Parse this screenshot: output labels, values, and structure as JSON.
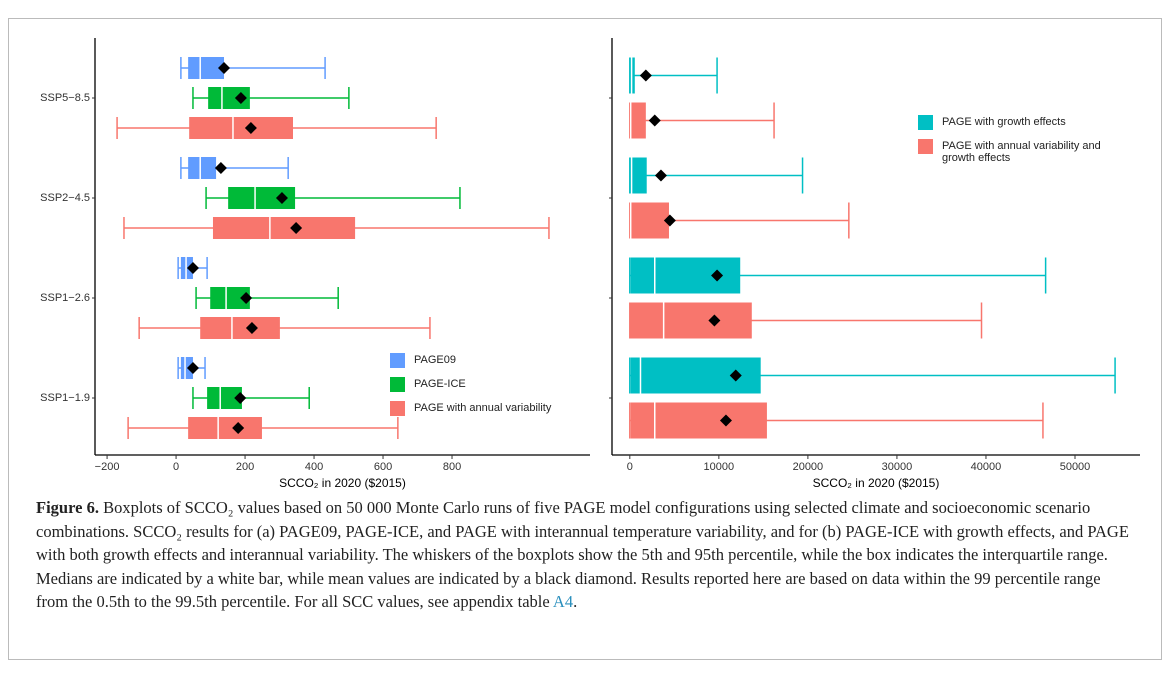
{
  "chart_data": [
    {
      "type": "boxplot",
      "xlabel": "SCCO₂ in 2020 ($2015)",
      "categories": [
        "SSP5−8.5",
        "SSP2−4.5",
        "SSP1−2.6",
        "SSP1−1.9"
      ],
      "xlim": [
        -235,
        1200
      ],
      "xticks": [
        {
          "value": -200,
          "label": "−200"
        },
        0,
        200,
        400,
        600,
        800
      ],
      "legend": "lower right",
      "series": [
        {
          "name": "PAGE09",
          "color": "#619CFF",
          "whislo": [
            14,
            14,
            6,
            6
          ],
          "q1": [
            35,
            35,
            14,
            14
          ],
          "med": [
            70,
            70,
            29,
            26
          ],
          "q3": [
            139,
            116,
            49,
            49
          ],
          "whishi": [
            432,
            325,
            90,
            84
          ],
          "mean": [
            139,
            130,
            49,
            49
          ]
        },
        {
          "name": "PAGE-ICE",
          "color": "#00BA38",
          "whislo": [
            49,
            87,
            58,
            49
          ],
          "q1": [
            93,
            151,
            99,
            90
          ],
          "med": [
            133,
            229,
            145,
            128
          ],
          "q3": [
            214,
            345,
            214,
            191
          ],
          "whishi": [
            501,
            823,
            470,
            386
          ],
          "mean": [
            188,
            307,
            203,
            186
          ]
        },
        {
          "name": "PAGE with annual variability",
          "color": "#F8766D",
          "whislo": [
            -171,
            -151,
            -107,
            -139
          ],
          "q1": [
            38,
            107,
            70,
            35
          ],
          "med": [
            165,
            272,
            162,
            122
          ],
          "q3": [
            339,
            519,
            301,
            249
          ],
          "whishi": [
            754,
            1081,
            736,
            643
          ],
          "mean": [
            217,
            348,
            220,
            180
          ]
        }
      ]
    },
    {
      "type": "boxplot",
      "xlabel": "SCCO₂ in 2020 ($2015)",
      "categories": [
        null,
        null,
        null,
        null
      ],
      "xlim": [
        -2000,
        57300
      ],
      "xticks": [
        0,
        10000,
        20000,
        30000,
        40000,
        50000
      ],
      "legend": "upper right",
      "series": [
        {
          "name": "PAGE with growth effects",
          "color": "#00BFC4",
          "whislo": [
            0,
            0,
            0,
            0
          ],
          "q1": [
            0,
            0,
            100,
            100
          ],
          "med": [
            200,
            200,
            2800,
            1200
          ],
          "q3": [
            560,
            1900,
            12400,
            14700
          ],
          "whishi": [
            9800,
            19400,
            46700,
            54500
          ],
          "mean": [
            1800,
            3500,
            9800,
            11900
          ]
        },
        {
          "name": "PAGE with annual variability and growth effects",
          "color": "#F8766D",
          "whislo": [
            0,
            0,
            0,
            0
          ],
          "q1": [
            0,
            0,
            0,
            100
          ],
          "med": [
            100,
            100,
            3800,
            2800
          ],
          "q3": [
            1800,
            4400,
            13700,
            15400
          ],
          "whishi": [
            16200,
            24600,
            39500,
            46400
          ],
          "mean": [
            2800,
            4500,
            9500,
            10800
          ]
        }
      ]
    }
  ],
  "caption": {
    "label": "Figure 6.",
    "text": "Boxplots of SCCO₂ values based on 50 000 Monte Carlo runs of five PAGE model configurations using selected climate and socioeconomic scenario combinations. SCCO₂ results for (a) PAGE09, PAGE-ICE, and PAGE with interannual temperature variability, and for (b) PAGE-ICE with growth effects, and PAGE with both growth effects and interannual variability. The whiskers of the boxplots show the 5th and 95th percentile, while the box indicates the interquartile range. Medians are indicated by a white bar, while mean values are indicated by a black diamond. Results reported here are based on data within the 99 percentile range from the 0.5th to the 99.5th percentile. For all SCC values, see appendix table",
    "link": "A4",
    "end": "."
  }
}
